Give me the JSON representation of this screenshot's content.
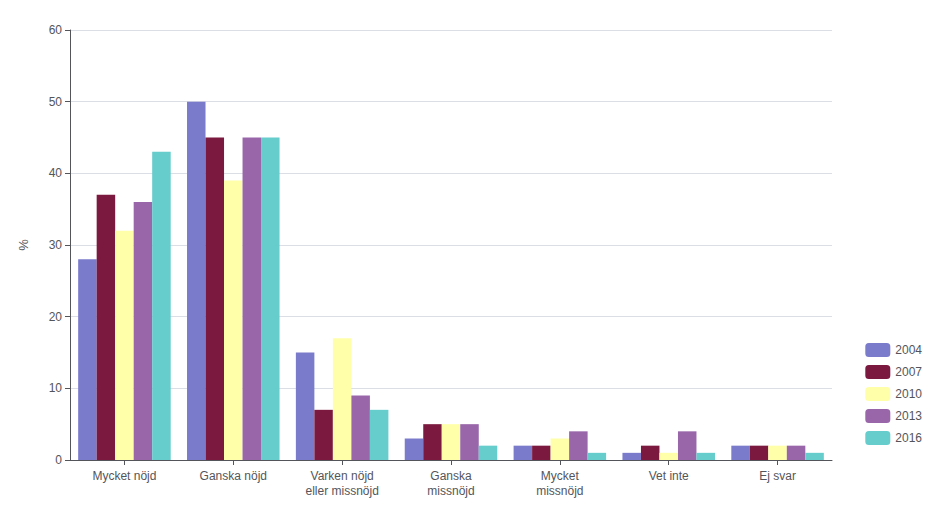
{
  "chart_data": {
    "type": "bar",
    "categories": [
      "Mycket nöjd",
      "Ganska nöjd",
      "Varken nöjd\neller missnöjd",
      "Ganska\nmissnöjd",
      "Mycket\nmissnöjd",
      "Vet inte",
      "Ej svar"
    ],
    "series": [
      {
        "name": "2004",
        "color": "#7b7bcc",
        "values": [
          28,
          50,
          15,
          3,
          2,
          1,
          2
        ]
      },
      {
        "name": "2007",
        "color": "#7b1a3e",
        "values": [
          37,
          45,
          7,
          5,
          2,
          2,
          2
        ]
      },
      {
        "name": "2010",
        "color": "#ffffaa",
        "values": [
          32,
          39,
          17,
          5,
          3,
          1,
          2
        ]
      },
      {
        "name": "2013",
        "color": "#9966aa",
        "values": [
          36,
          45,
          9,
          5,
          4,
          4,
          2
        ]
      },
      {
        "name": "2016",
        "color": "#66cccc",
        "values": [
          43,
          45,
          7,
          2,
          1,
          1,
          1
        ]
      }
    ],
    "ylabel": "%",
    "ylim": [
      0,
      60
    ],
    "yticks": [
      0,
      10,
      20,
      30,
      40,
      50,
      60
    ],
    "grid": true,
    "legend": "right"
  }
}
